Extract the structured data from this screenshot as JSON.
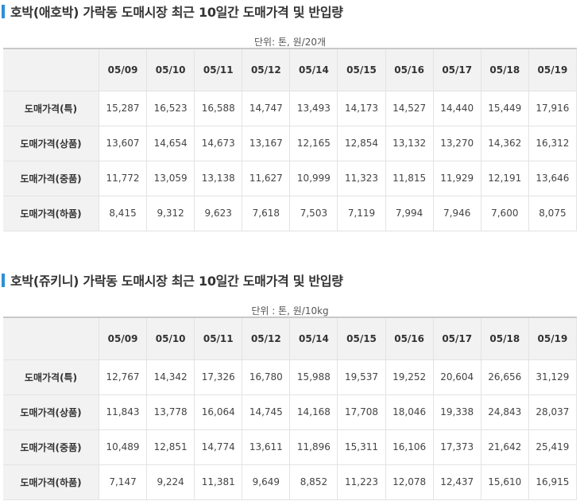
{
  "section1": {
    "title": "호박(애호박) 가락동 도매시장 최근 10일간 도매가격 및 반입량",
    "unit": "단위: 톤, 원/20개",
    "dates": [
      "05/09",
      "05/10",
      "05/11",
      "05/12",
      "05/14",
      "05/15",
      "05/16",
      "05/17",
      "05/18",
      "05/19"
    ],
    "rows": [
      {
        "label": "도매가격(특)",
        "values": [
          "15,287",
          "16,523",
          "16,588",
          "14,747",
          "13,493",
          "14,173",
          "14,527",
          "14,440",
          "15,449",
          "17,916"
        ]
      },
      {
        "label": "도매가격(상품)",
        "values": [
          "13,607",
          "14,654",
          "14,673",
          "13,167",
          "12,165",
          "12,854",
          "13,132",
          "13,270",
          "14,362",
          "16,312"
        ]
      },
      {
        "label": "도매가격(중품)",
        "values": [
          "11,772",
          "13,059",
          "13,138",
          "11,627",
          "10,999",
          "11,323",
          "11,815",
          "11,929",
          "12,191",
          "13,646"
        ]
      },
      {
        "label": "도매가격(하품)",
        "values": [
          "8,415",
          "9,312",
          "9,623",
          "7,618",
          "7,503",
          "7,119",
          "7,994",
          "7,946",
          "7,600",
          "8,075"
        ]
      }
    ]
  },
  "section2": {
    "title": "호박(쥬키니) 가락동 도매시장 최근 10일간 도매가격 및 반입량",
    "unit": "단위 : 톤, 원/10kg",
    "dates": [
      "05/09",
      "05/10",
      "05/11",
      "05/12",
      "05/14",
      "05/15",
      "05/16",
      "05/17",
      "05/18",
      "05/19"
    ],
    "rows": [
      {
        "label": "도매가격(특)",
        "values": [
          "12,767",
          "14,342",
          "17,326",
          "16,780",
          "15,988",
          "19,537",
          "19,252",
          "20,604",
          "26,656",
          "31,129"
        ]
      },
      {
        "label": "도매가격(상품)",
        "values": [
          "11,843",
          "13,778",
          "16,064",
          "14,745",
          "14,168",
          "17,708",
          "18,046",
          "19,338",
          "24,843",
          "28,037"
        ]
      },
      {
        "label": "도매가격(중품)",
        "values": [
          "10,489",
          "12,851",
          "14,774",
          "13,611",
          "11,896",
          "15,311",
          "16,106",
          "17,373",
          "21,642",
          "25,419"
        ]
      },
      {
        "label": "도매가격(하품)",
        "values": [
          "7,147",
          "9,224",
          "11,381",
          "9,649",
          "8,852",
          "11,223",
          "12,078",
          "12,437",
          "15,610",
          "16,915"
        ]
      }
    ]
  },
  "accent_color": "#2f8fd6"
}
